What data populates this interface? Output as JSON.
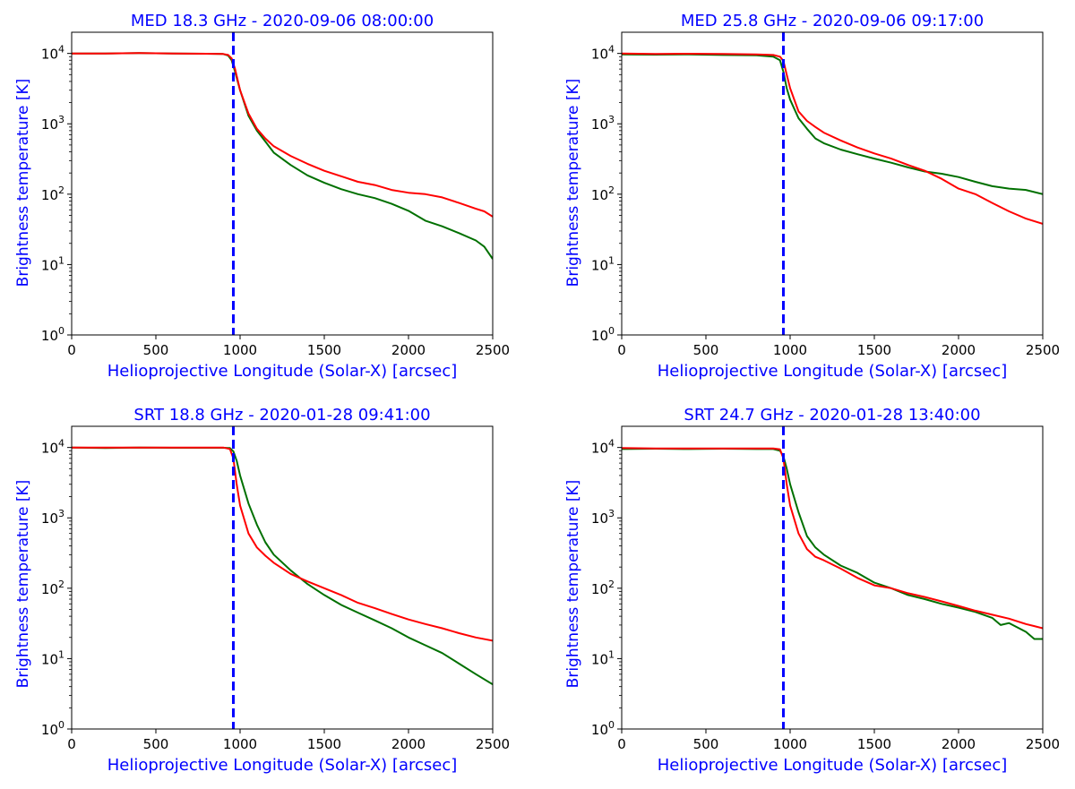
{
  "colors": {
    "title": "#0000ff",
    "marker_line": "#0000ff",
    "series_green": "#007000",
    "series_red": "#ff0000"
  },
  "chart_data": [
    {
      "type": "line",
      "title": "MED 18.3 GHz - 2020-09-06 08:00:00",
      "xlabel": "Helioprojective Longitude (Solar-X) [arcsec]",
      "ylabel": "Brightness temperature [K]",
      "xlim": [
        0,
        2500
      ],
      "ylim": [
        1,
        20000
      ],
      "yscale": "log",
      "xticks": [
        0,
        500,
        1000,
        1500,
        2000,
        2500
      ],
      "ytick_base": "10",
      "ytick_exponents": [
        "0",
        "1",
        "2",
        "3",
        "4"
      ],
      "grid": false,
      "vline_x": 960,
      "series": [
        {
          "name": "green",
          "color": "#007000",
          "x": [
            0,
            200,
            400,
            600,
            800,
            900,
            930,
            950,
            970,
            1000,
            1050,
            1100,
            1150,
            1200,
            1300,
            1400,
            1500,
            1600,
            1700,
            1800,
            1900,
            2000,
            2100,
            2200,
            2300,
            2400,
            2450,
            2500
          ],
          "y": [
            10000,
            10000,
            10100,
            10000,
            9900,
            9800,
            9300,
            8000,
            5500,
            3000,
            1300,
            800,
            560,
            390,
            260,
            185,
            145,
            118,
            100,
            88,
            73,
            58,
            42,
            35,
            28,
            22,
            18,
            12
          ]
        },
        {
          "name": "red",
          "color": "#ff0000",
          "x": [
            0,
            200,
            400,
            600,
            800,
            900,
            930,
            950,
            970,
            1000,
            1050,
            1100,
            1150,
            1200,
            1300,
            1400,
            1500,
            1600,
            1700,
            1800,
            1900,
            2000,
            2100,
            2200,
            2300,
            2400,
            2450,
            2500
          ],
          "y": [
            10000,
            10000,
            10100,
            10000,
            9900,
            9800,
            9500,
            8500,
            6000,
            3000,
            1400,
            850,
            620,
            480,
            350,
            270,
            215,
            180,
            150,
            135,
            115,
            105,
            100,
            90,
            75,
            62,
            57,
            48
          ]
        }
      ]
    },
    {
      "type": "line",
      "title": "MED 25.8 GHz - 2020-09-06 09:17:00",
      "xlabel": "Helioprojective Longitude (Solar-X) [arcsec]",
      "ylabel": "Brightness temperature [K]",
      "xlim": [
        0,
        2500
      ],
      "ylim": [
        1,
        20000
      ],
      "yscale": "log",
      "xticks": [
        0,
        500,
        1000,
        1500,
        2000,
        2500
      ],
      "ytick_base": "10",
      "ytick_exponents": [
        "0",
        "1",
        "2",
        "3",
        "4"
      ],
      "grid": false,
      "vline_x": 960,
      "series": [
        {
          "name": "green",
          "color": "#007000",
          "x": [
            0,
            200,
            400,
            600,
            800,
            900,
            940,
            960,
            980,
            1000,
            1050,
            1100,
            1150,
            1200,
            1300,
            1400,
            1500,
            1600,
            1700,
            1800,
            1900,
            2000,
            2100,
            2200,
            2300,
            2400,
            2500
          ],
          "y": [
            9700,
            9600,
            9700,
            9500,
            9400,
            9000,
            8000,
            5500,
            3200,
            2200,
            1200,
            850,
            620,
            530,
            430,
            370,
            320,
            280,
            240,
            210,
            195,
            175,
            150,
            130,
            120,
            115,
            100
          ]
        },
        {
          "name": "red",
          "color": "#ff0000",
          "x": [
            0,
            200,
            400,
            600,
            800,
            900,
            940,
            960,
            980,
            1000,
            1050,
            1100,
            1150,
            1200,
            1300,
            1400,
            1500,
            1600,
            1700,
            1800,
            1900,
            2000,
            2100,
            2200,
            2300,
            2400,
            2500
          ],
          "y": [
            10000,
            9800,
            9900,
            9800,
            9700,
            9500,
            9000,
            7800,
            5000,
            3200,
            1500,
            1100,
            900,
            750,
            580,
            460,
            380,
            320,
            260,
            215,
            165,
            120,
            100,
            75,
            57,
            45,
            38
          ]
        }
      ]
    },
    {
      "type": "line",
      "title": "SRT 18.8 GHz - 2020-01-28 09:41:00",
      "xlabel": "Helioprojective Longitude (Solar-X) [arcsec]",
      "ylabel": "Brightness temperature [K]",
      "xlim": [
        0,
        2500
      ],
      "ylim": [
        1,
        20000
      ],
      "yscale": "log",
      "xticks": [
        0,
        500,
        1000,
        1500,
        2000,
        2500
      ],
      "ytick_base": "10",
      "ytick_exponents": [
        "0",
        "1",
        "2",
        "3",
        "4"
      ],
      "grid": false,
      "vline_x": 960,
      "series": [
        {
          "name": "green",
          "color": "#007000",
          "x": [
            0,
            200,
            400,
            600,
            800,
            900,
            940,
            960,
            980,
            1000,
            1050,
            1100,
            1150,
            1200,
            1300,
            1400,
            1500,
            1600,
            1700,
            1800,
            1900,
            2000,
            2100,
            2200,
            2300,
            2400,
            2500
          ],
          "y": [
            10000,
            9800,
            10000,
            9900,
            9900,
            9900,
            9800,
            8800,
            6500,
            4000,
            1600,
            800,
            450,
            300,
            180,
            115,
            80,
            58,
            45,
            35,
            27,
            20,
            15.5,
            12,
            8.5,
            6,
            4.3
          ]
        },
        {
          "name": "red",
          "color": "#ff0000",
          "x": [
            0,
            200,
            400,
            600,
            800,
            900,
            940,
            960,
            980,
            1000,
            1050,
            1100,
            1150,
            1200,
            1300,
            1400,
            1500,
            1600,
            1700,
            1800,
            1900,
            2000,
            2100,
            2200,
            2300,
            2400,
            2500
          ],
          "y": [
            10000,
            10000,
            10000,
            10000,
            10000,
            10000,
            9500,
            7000,
            3000,
            1500,
            600,
            380,
            290,
            230,
            160,
            125,
            100,
            80,
            62,
            52,
            43,
            36,
            31,
            27,
            23,
            20,
            18
          ]
        }
      ]
    },
    {
      "type": "line",
      "title": "SRT 24.7 GHz - 2020-01-28 13:40:00",
      "xlabel": "Helioprojective Longitude (Solar-X) [arcsec]",
      "ylabel": "Brightness temperature [K]",
      "xlim": [
        0,
        2500
      ],
      "ylim": [
        1,
        20000
      ],
      "yscale": "log",
      "xticks": [
        0,
        500,
        1000,
        1500,
        2000,
        2500
      ],
      "ytick_base": "10",
      "ytick_exponents": [
        "0",
        "1",
        "2",
        "3",
        "4"
      ],
      "grid": false,
      "vline_x": 960,
      "series": [
        {
          "name": "green",
          "color": "#007000",
          "x": [
            0,
            200,
            400,
            600,
            800,
            900,
            940,
            960,
            980,
            1000,
            1050,
            1100,
            1150,
            1200,
            1300,
            1400,
            1500,
            1600,
            1700,
            1800,
            1900,
            2000,
            2100,
            2200,
            2250,
            2300,
            2400,
            2450,
            2500
          ],
          "y": [
            9500,
            9600,
            9500,
            9600,
            9500,
            9500,
            9000,
            7500,
            5000,
            3000,
            1200,
            550,
            380,
            300,
            210,
            165,
            120,
            100,
            80,
            70,
            60,
            53,
            46,
            38,
            30,
            32,
            24,
            19,
            19
          ]
        },
        {
          "name": "red",
          "color": "#ff0000",
          "x": [
            0,
            200,
            400,
            600,
            800,
            900,
            940,
            960,
            980,
            1000,
            1050,
            1100,
            1150,
            1200,
            1300,
            1400,
            1500,
            1600,
            1700,
            1800,
            1900,
            2000,
            2100,
            2200,
            2300,
            2400,
            2450,
            2500
          ],
          "y": [
            9800,
            9700,
            9700,
            9700,
            9700,
            9700,
            9400,
            7000,
            3000,
            1500,
            600,
            360,
            280,
            250,
            190,
            140,
            110,
            100,
            85,
            75,
            65,
            56,
            48,
            42,
            37,
            31,
            29,
            27
          ]
        }
      ]
    }
  ]
}
